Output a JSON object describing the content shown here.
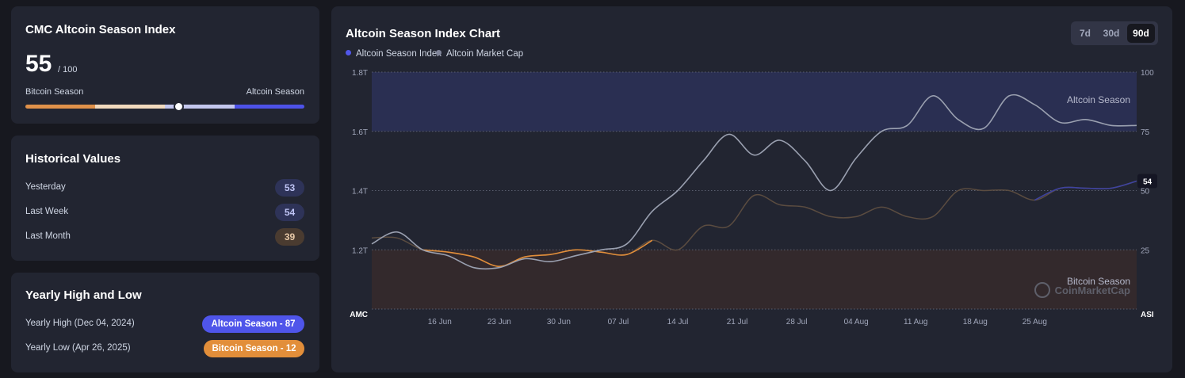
{
  "index_card": {
    "title": "CMC Altcoin Season Index",
    "value": "55",
    "max": "/ 100",
    "left_label": "Bitcoin Season",
    "right_label": "Altcoin Season",
    "current_fraction": 0.55
  },
  "historical": {
    "title": "Historical Values",
    "rows": [
      {
        "label": "Yesterday",
        "value": "53"
      },
      {
        "label": "Last Week",
        "value": "54"
      },
      {
        "label": "Last Month",
        "value": "39"
      }
    ]
  },
  "yearly": {
    "title": "Yearly High and Low",
    "high_label": "Yearly High",
    "high_date": "(Dec 04, 2024)",
    "high_badge": "Altcoin Season - 87",
    "low_label": "Yearly Low",
    "low_date": "(Apr 26, 2025)",
    "low_badge": "Bitcoin Season - 12"
  },
  "chart": {
    "title": "Altcoin Season Index Chart",
    "legend": [
      "Altcoin Season Index",
      "Altcoin Market Cap"
    ],
    "range_options": [
      "7d",
      "30d",
      "90d"
    ],
    "range_selected": "90d",
    "zone_top_label": "Altcoin Season",
    "zone_bottom_label": "Bitcoin Season",
    "watermark": "CoinMarketCap",
    "left_axis_title": "AMC",
    "right_axis_title": "ASI",
    "current_label": "54"
  },
  "colors": {
    "asi": "#5157ea",
    "amc": "#9aa0b0",
    "bitcoin": "#e28e3a",
    "altcoin_zone": "#2a2f52",
    "bitcoin_zone": "#33292c"
  },
  "chart_data": {
    "type": "line",
    "title": "Altcoin Season Index Chart",
    "x_ticks": [
      "16 Jun",
      "23 Jun",
      "30 Jun",
      "07 Jul",
      "14 Jul",
      "21 Jul",
      "28 Jul",
      "04 Aug",
      "11 Aug",
      "18 Aug",
      "25 Aug"
    ],
    "x_range": [
      0,
      90
    ],
    "left_axis": {
      "label": "AMC",
      "ticks": [
        "1.2T",
        "1.4T",
        "1.6T",
        "1.8T"
      ],
      "range": [
        1.0,
        1.8
      ]
    },
    "right_axis": {
      "label": "ASI",
      "ticks": [
        "25",
        "50",
        "75",
        "100"
      ],
      "range": [
        0,
        100
      ]
    },
    "zones": {
      "altcoin_season": [
        75,
        100
      ],
      "bitcoin_season": [
        0,
        25
      ]
    },
    "series": [
      {
        "name": "Altcoin Season Index",
        "axis": "right",
        "x": [
          0,
          3,
          6,
          9,
          12,
          15,
          18,
          21,
          24,
          27,
          30,
          33,
          36,
          39,
          42,
          45,
          48,
          51,
          54,
          57,
          60,
          63,
          66,
          69,
          72,
          75,
          78,
          81,
          84,
          87,
          90
        ],
        "values": [
          30,
          30,
          25,
          24,
          22,
          18,
          22,
          23,
          25,
          24,
          23,
          29,
          25,
          35,
          35,
          48,
          44,
          43,
          39,
          39,
          43,
          39,
          39,
          50,
          50,
          50,
          46,
          51,
          51,
          51,
          54
        ]
      },
      {
        "name": "Altcoin Market Cap",
        "axis": "left",
        "unit": "T",
        "x": [
          0,
          3,
          6,
          9,
          12,
          15,
          18,
          21,
          24,
          27,
          30,
          33,
          36,
          39,
          42,
          45,
          48,
          51,
          54,
          57,
          60,
          63,
          66,
          69,
          72,
          75,
          78,
          81,
          84,
          87,
          90
        ],
        "values": [
          1.22,
          1.26,
          1.2,
          1.18,
          1.14,
          1.14,
          1.17,
          1.16,
          1.18,
          1.2,
          1.22,
          1.33,
          1.4,
          1.5,
          1.59,
          1.52,
          1.57,
          1.5,
          1.4,
          1.51,
          1.6,
          1.62,
          1.72,
          1.64,
          1.61,
          1.72,
          1.69,
          1.63,
          1.64,
          1.62,
          1.62
        ]
      }
    ]
  }
}
